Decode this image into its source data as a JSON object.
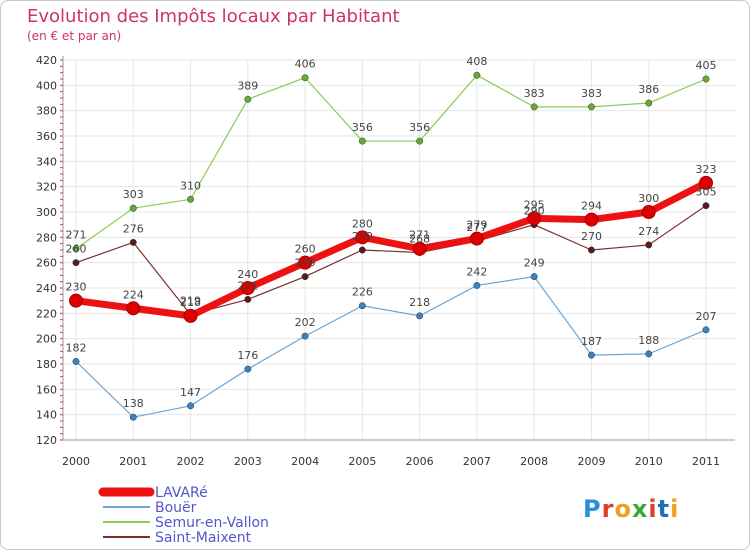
{
  "brand": {
    "text": "Proxiti",
    "colors": [
      "#2a8fd8",
      "#e03c2c",
      "#f0a020",
      "#3aaa35",
      "#e03c2c",
      "#1e6fb8",
      "#f0a020"
    ]
  },
  "chart_data": {
    "type": "line",
    "title": "Evolution des Impôts locaux par Habitant",
    "subtitle": "(en € et par an)",
    "xlabel": "",
    "ylabel": "",
    "x": [
      "2000",
      "2001",
      "2002",
      "2003",
      "2004",
      "2005",
      "2006",
      "2007",
      "2008",
      "2009",
      "2010",
      "2011"
    ],
    "ylim": [
      120,
      420
    ],
    "yticks": [
      120,
      140,
      160,
      180,
      200,
      220,
      240,
      260,
      280,
      300,
      320,
      340,
      360,
      380,
      400,
      420
    ],
    "grid": true,
    "legend_position": "bottom-left",
    "series": [
      {
        "name": "Semur-en-Vallon",
        "color": "#88cc55",
        "marker": "#66aa33",
        "emphasis": false,
        "values": [
          271,
          303,
          310,
          389,
          406,
          356,
          356,
          408,
          383,
          383,
          386,
          405
        ],
        "labels": [
          "271",
          "303",
          "310",
          "389",
          "406",
          "356",
          "356",
          "408",
          "383",
          "383",
          "386",
          "405"
        ]
      },
      {
        "name": "Bouër",
        "color": "#6aa6d6",
        "marker": "#3b82c4",
        "emphasis": false,
        "values": [
          182,
          138,
          147,
          176,
          202,
          226,
          218,
          242,
          249,
          187,
          188,
          207
        ],
        "labels": [
          "182",
          "138",
          "147",
          "176",
          "202",
          "226",
          "218",
          "242",
          "249",
          "187",
          "188",
          "207"
        ]
      },
      {
        "name": "Saint-Maixent",
        "color": "#7a3030",
        "marker": "#5a1a1a",
        "emphasis": false,
        "values": [
          260,
          276,
          219,
          231,
          249,
          270,
          268,
          277,
          290,
          270,
          274,
          305
        ],
        "labels": [
          "260",
          "276",
          "219",
          "231",
          "249",
          "270",
          "268",
          "277",
          "290",
          "270",
          "274",
          "305"
        ]
      },
      {
        "name": "LAVARé",
        "color": "#ee1111",
        "marker": "#dd0000",
        "emphasis": true,
        "values": [
          230,
          224,
          218,
          240,
          260,
          280,
          271,
          279,
          295,
          294,
          300,
          323
        ],
        "labels": [
          "230",
          "224",
          "218",
          "240",
          "260",
          "280",
          "271",
          "279",
          "295",
          "294",
          "300",
          "323"
        ]
      }
    ],
    "legend_order": [
      "LAVARé",
      "Bouër",
      "Semur-en-Vallon",
      "Saint-Maixent"
    ]
  }
}
